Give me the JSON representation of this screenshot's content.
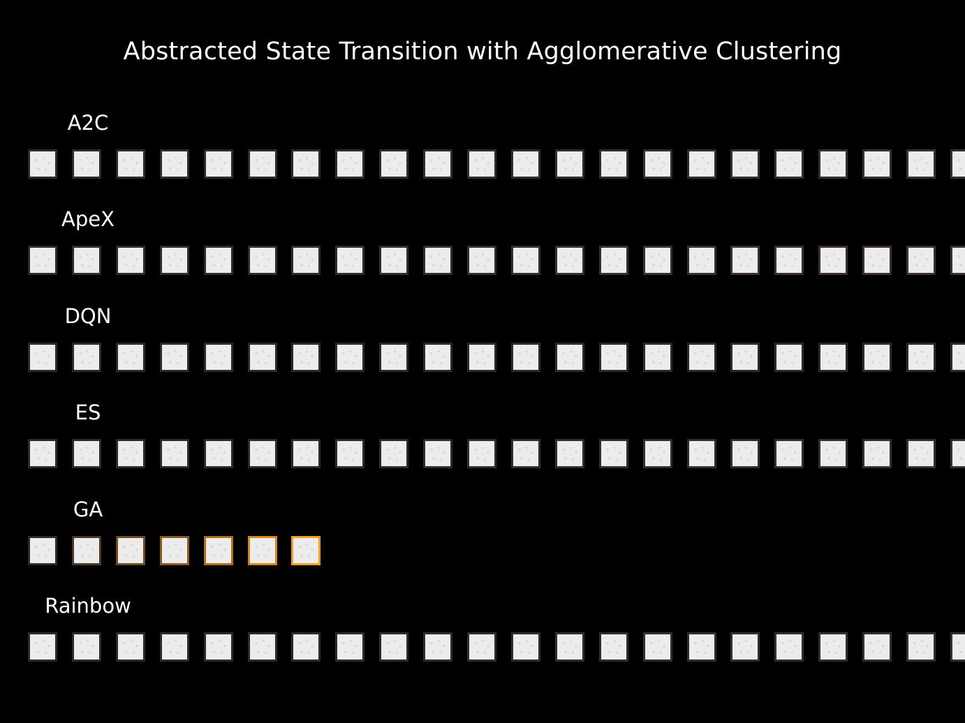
{
  "title": "Abstracted State Transition with Agglomerative Clustering",
  "rows": [
    {
      "label": "A2C",
      "frames": [
        "#2b2b2b",
        "#2b2b2b",
        "#2b2b2b",
        "#2b2b2b",
        "#2b2b2b",
        "#2b2b2b",
        "#2b2b2b",
        "#2c2c2c",
        "#2c2d2d",
        "#2c2d2e",
        "#2c2e2f",
        "#2c2e30",
        "#2c2f31",
        "#2c2f32",
        "#2c3033",
        "#2c3034",
        "#2c3135",
        "#2c3136",
        "#2c3237",
        "#2c3238",
        "#2c3339",
        "#2c333a"
      ]
    },
    {
      "label": "ApeX",
      "frames": [
        "#2b2b2b",
        "#2b2b2b",
        "#2c2b2b",
        "#2d2b2b",
        "#2e2b2b",
        "#2f2b2b",
        "#302b2b",
        "#312c2c",
        "#332c2c",
        "#342c2c",
        "#352c2c",
        "#362c2c",
        "#372d2d",
        "#382d2d",
        "#392d2d",
        "#3a2d2d",
        "#3b2e2e",
        "#3c2e2e",
        "#3d2e2e",
        "#3e2e2e",
        "#3f2f2f",
        "#402f2f"
      ]
    },
    {
      "label": "DQN",
      "frames": [
        "#2b2b2b",
        "#2b2b2b",
        "#2b2b2b",
        "#2b2b2b",
        "#2b2b2b",
        "#2b2b2b",
        "#2b2b2b",
        "#2b2b2b",
        "#2b2b2b",
        "#2b2b2b",
        "#2b2b2b",
        "#2b2b2b",
        "#2b2b2b",
        "#2b2b2b",
        "#2b2b2b",
        "#2b2b2b",
        "#2b2b2b",
        "#2b2b2b",
        "#2b2b2b",
        "#2b2b2b",
        "#2b2b2b",
        "#2b2b2b"
      ]
    },
    {
      "label": "ES",
      "frames": [
        "#2b2b2b",
        "#2b2b2b",
        "#2b2b2b",
        "#2b2b2b",
        "#2b2b2b",
        "#2b2b2b",
        "#2b2b2b",
        "#2c2c2b",
        "#2c2c2b",
        "#2d2d2b",
        "#2d2d2b",
        "#2e2e2b",
        "#2e2e2b",
        "#2f2f2b",
        "#2f2f2b",
        "#30302b",
        "#30302b",
        "#31312c",
        "#31312c",
        "#32322c",
        "#32322c",
        "#33332c"
      ]
    },
    {
      "label": "GA",
      "frames": [
        "#2b2b2b",
        "#4a3a24",
        "#6e4a1e",
        "#8c5a1e",
        "#b06e1a",
        "#d4841a",
        "#f0a020"
      ]
    },
    {
      "label": "Rainbow",
      "frames": [
        "#2b2b2b",
        "#2b2b2b",
        "#2b2b2b",
        "#2b2b2b",
        "#2b2b2b",
        "#2b2b2b",
        "#2b2b2b",
        "#2b2c2d",
        "#2b2c2e",
        "#2b2d2f",
        "#2b2d30",
        "#2b2e31",
        "#2b2e32",
        "#2b2f33",
        "#2b2f34",
        "#2b3035",
        "#2b3036",
        "#2b3137",
        "#2b3138",
        "#2b3239",
        "#2b323a",
        "#2b333b"
      ]
    }
  ]
}
